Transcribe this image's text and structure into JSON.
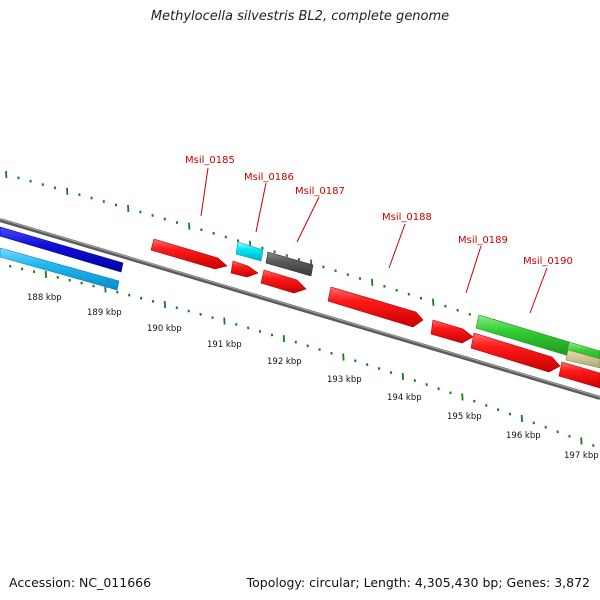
{
  "title": "Methylocella silvestris BL2, complete genome",
  "footer": {
    "accession": "Accession: NC_011666",
    "summary": "Topology: circular; Length: 4,305,430 bp; Genes: 3,872"
  },
  "colors": {
    "backbone": "#7a7a7a",
    "tick": "#1a7a1a",
    "label": "#cc0000",
    "cds_red": "#ff0000",
    "blue": "#1010d8",
    "light_blue": "#20b8f0",
    "cyan": "#00e8f0",
    "gray": "#555555",
    "green": "#33cc33",
    "tan": "#c8c08a"
  },
  "kbp_labels": [
    "188 kbp",
    "189 kbp",
    "190 kbp",
    "191 kbp",
    "192 kbp",
    "193 kbp",
    "194 kbp",
    "195 kbp",
    "196 kbp",
    "197 kbp"
  ],
  "gene_labels": [
    "Msil_0185",
    "Msil_0186",
    "Msil_0187",
    "Msil_0188",
    "Msil_0189",
    "Msil_0190"
  ]
}
